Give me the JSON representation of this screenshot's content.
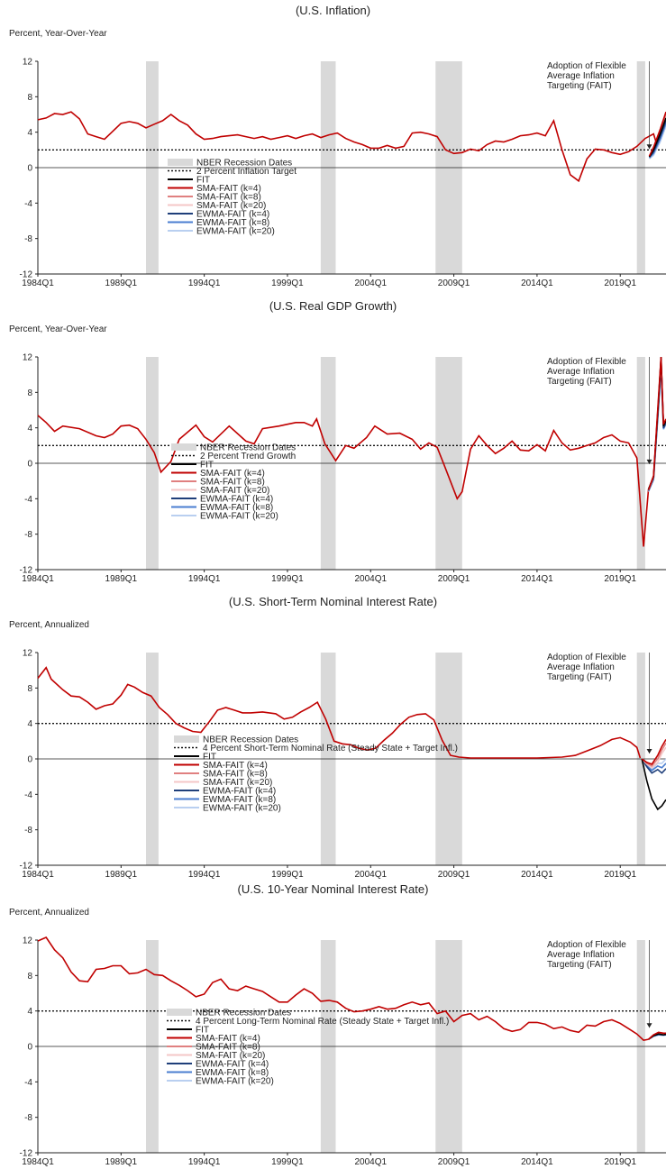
{
  "chart_data": [
    {
      "type": "line",
      "title": "(U.S. Inflation)",
      "ylabel": "Percent, Year-Over-Year",
      "ylim": [
        -12,
        12
      ],
      "yticks": [
        12,
        8,
        4,
        0,
        -4,
        -8,
        -12
      ],
      "xlim": [
        1984.0,
        2021.75
      ],
      "xticks": [
        "1984Q1",
        "1989Q1",
        "1994Q1",
        "1999Q1",
        "2004Q1",
        "2009Q1",
        "2014Q1",
        "2019Q1"
      ],
      "reference_line": {
        "label": "2 Percent Inflation Target",
        "value": 2
      },
      "annotation": [
        "Adoption of Flexible",
        "Average Inflation",
        "Targeting (FAIT)"
      ],
      "recessions": [
        [
          1990.5,
          1991.25
        ],
        [
          2001.0,
          2001.9
        ],
        [
          2007.9,
          2009.5
        ],
        [
          2020.0,
          2020.5
        ]
      ],
      "history": [
        [
          1984.0,
          5.4
        ],
        [
          1984.5,
          5.6
        ],
        [
          1985.0,
          6.1
        ],
        [
          1985.5,
          6.0
        ],
        [
          1986.0,
          6.3
        ],
        [
          1986.5,
          5.5
        ],
        [
          1987.0,
          3.8
        ],
        [
          1987.5,
          3.5
        ],
        [
          1988.0,
          3.2
        ],
        [
          1988.5,
          4.1
        ],
        [
          1989.0,
          5.0
        ],
        [
          1989.5,
          5.2
        ],
        [
          1990.0,
          5.0
        ],
        [
          1990.5,
          4.5
        ],
        [
          1991.0,
          4.9
        ],
        [
          1991.5,
          5.3
        ],
        [
          1992.0,
          6.0
        ],
        [
          1992.5,
          5.3
        ],
        [
          1993.0,
          4.8
        ],
        [
          1993.5,
          3.8
        ],
        [
          1994.0,
          3.2
        ],
        [
          1994.5,
          3.3
        ],
        [
          1995.0,
          3.5
        ],
        [
          1995.5,
          3.6
        ],
        [
          1996.0,
          3.7
        ],
        [
          1996.5,
          3.5
        ],
        [
          1997.0,
          3.3
        ],
        [
          1997.5,
          3.5
        ],
        [
          1998.0,
          3.2
        ],
        [
          1998.5,
          3.4
        ],
        [
          1999.0,
          3.6
        ],
        [
          1999.5,
          3.3
        ],
        [
          2000.0,
          3.6
        ],
        [
          2000.5,
          3.8
        ],
        [
          2001.0,
          3.4
        ],
        [
          2001.5,
          3.7
        ],
        [
          2002.0,
          3.9
        ],
        [
          2002.5,
          3.3
        ],
        [
          2003.0,
          2.9
        ],
        [
          2003.5,
          2.6
        ],
        [
          2004.0,
          2.2
        ],
        [
          2004.5,
          2.2
        ],
        [
          2005.0,
          2.5
        ],
        [
          2005.5,
          2.2
        ],
        [
          2006.0,
          2.4
        ],
        [
          2006.5,
          3.9
        ],
        [
          2007.0,
          4.0
        ],
        [
          2007.5,
          3.8
        ],
        [
          2008.0,
          3.5
        ],
        [
          2008.5,
          2.0
        ],
        [
          2009.0,
          1.6
        ],
        [
          2009.5,
          1.7
        ],
        [
          2010.0,
          2.1
        ],
        [
          2010.5,
          1.9
        ],
        [
          2011.0,
          2.6
        ],
        [
          2011.5,
          3.0
        ],
        [
          2012.0,
          2.9
        ],
        [
          2012.5,
          3.2
        ],
        [
          2013.0,
          3.6
        ],
        [
          2013.5,
          3.7
        ],
        [
          2014.0,
          3.9
        ],
        [
          2014.5,
          3.6
        ],
        [
          2015.0,
          5.3
        ],
        [
          2015.5,
          2.0
        ],
        [
          2016.0,
          -0.8
        ],
        [
          2016.5,
          -1.5
        ],
        [
          2017.0,
          1.0
        ],
        [
          2017.5,
          2.1
        ],
        [
          2018.0,
          2.0
        ],
        [
          2018.5,
          1.7
        ],
        [
          2019.0,
          1.5
        ],
        [
          2019.5,
          1.8
        ],
        [
          2020.0,
          2.4
        ],
        [
          2020.5,
          3.3
        ],
        [
          2021.0,
          3.8
        ],
        [
          2021.25,
          2.3
        ]
      ],
      "legend": [
        "NBER Recession Dates",
        "2 Percent Inflation Target",
        "FIT",
        "SMA-FAIT (k=4)",
        "SMA-FAIT (k=8)",
        "SMA-FAIT (k=20)",
        "EWMA-FAIT (k=4)",
        "EWMA-FAIT (k=8)",
        "EWMA-FAIT (k=20)"
      ]
    },
    {
      "type": "line",
      "title": "(U.S. Real GDP Growth)",
      "ylabel": "Percent, Year-Over-Year",
      "ylim": [
        -12,
        12
      ],
      "yticks": [
        12,
        8,
        4,
        0,
        -4,
        -8,
        -12
      ],
      "xlim": [
        1984.0,
        2021.75
      ],
      "xticks": [
        "1984Q1",
        "1989Q1",
        "1994Q1",
        "1999Q1",
        "2004Q1",
        "2009Q1",
        "2014Q1",
        "2019Q1"
      ],
      "reference_line": {
        "label": "2 Percent Trend Growth",
        "value": 2
      },
      "annotation": [
        "Adoption of Flexible",
        "Average Inflation",
        "Targeting (FAIT)"
      ],
      "recessions": [
        [
          1990.5,
          1991.25
        ],
        [
          2001.0,
          2001.9
        ],
        [
          2007.9,
          2009.5
        ],
        [
          2020.0,
          2020.5
        ]
      ],
      "legend": [
        "NBER Recession Dates",
        "2 Percent Trend Growth",
        "FIT",
        "SMA-FAIT (k=4)",
        "SMA-FAIT (k=8)",
        "SMA-FAIT (k=20)",
        "EWMA-FAIT (k=4)",
        "EWMA-FAIT (k=8)",
        "EWMA-FAIT (k=20)"
      ]
    },
    {
      "type": "line",
      "title": "(U.S. Short-Term Nominal Interest Rate)",
      "ylabel": "Percent, Annualized",
      "ylim": [
        -12,
        12
      ],
      "yticks": [
        12,
        8,
        4,
        0,
        -4,
        -8,
        -12
      ],
      "xlim": [
        1984.0,
        2021.75
      ],
      "xticks": [
        "1984Q1",
        "1989Q1",
        "1994Q1",
        "1999Q1",
        "2004Q1",
        "2009Q1",
        "2014Q1",
        "2019Q1"
      ],
      "reference_line": {
        "label": "4 Percent Short-Term Nominal Rate (Steady State + Target Infl.)",
        "value": 4
      },
      "annotation": [
        "Adoption of Flexible",
        "Average Inflation",
        "Targeting (FAIT)"
      ],
      "recessions": [
        [
          1990.5,
          1991.25
        ],
        [
          2001.0,
          2001.9
        ],
        [
          2007.9,
          2009.5
        ],
        [
          2020.0,
          2020.5
        ]
      ],
      "legend": [
        "NBER Recession Dates",
        "4 Percent Short-Term Nominal Rate (Steady State + Target Infl.)",
        "FIT",
        "SMA-FAIT (k=4)",
        "SMA-FAIT (k=8)",
        "SMA-FAIT (k=20)",
        "EWMA-FAIT (k=4)",
        "EWMA-FAIT (k=8)",
        "EWMA-FAIT (k=20)"
      ]
    },
    {
      "type": "line",
      "title": "(U.S. 10-Year Nominal Interest Rate)",
      "ylabel": "Percent, Annualized",
      "ylim": [
        -12,
        12
      ],
      "yticks": [
        12,
        8,
        4,
        0,
        -4,
        -8,
        -12
      ],
      "xlim": [
        1984.0,
        2021.75
      ],
      "xticks": [
        "1984Q1",
        "1989Q1",
        "1994Q1",
        "1999Q1",
        "2004Q1",
        "2009Q1",
        "2014Q1",
        "2019Q1"
      ],
      "reference_line": {
        "label": "4 Percent Long-Term Nominal Rate (Steady State + Target Infl.)",
        "value": 4
      },
      "annotation": [
        "Adoption of Flexible",
        "Average Inflation",
        "Targeting (FAIT)"
      ],
      "recessions": [
        [
          1990.5,
          1991.25
        ],
        [
          2001.0,
          2001.9
        ],
        [
          2007.9,
          2009.5
        ],
        [
          2020.0,
          2020.5
        ]
      ],
      "legend": [
        "NBER Recession Dates",
        "4 Percent Long-Term Nominal Rate (Steady State + Target Infl.)",
        "FIT",
        "SMA-FAIT (k=4)",
        "SMA-FAIT (k=8)",
        "SMA-FAIT (k=20)",
        "EWMA-FAIT (k=4)",
        "EWMA-FAIT (k=8)",
        "EWMA-FAIT (k=20)"
      ]
    }
  ],
  "series_colors": {
    "recession": "#d9d9d9",
    "FIT": "#000000",
    "SMA-FAIT (k=4)": "#c00000",
    "SMA-FAIT (k=8)": "#e08080",
    "SMA-FAIT (k=20)": "#f4c7c7",
    "EWMA-FAIT (k=4)": "#1f3f7a",
    "EWMA-FAIT (k=8)": "#4a7ed0",
    "EWMA-FAIT (k=20)": "#b9cff0"
  }
}
